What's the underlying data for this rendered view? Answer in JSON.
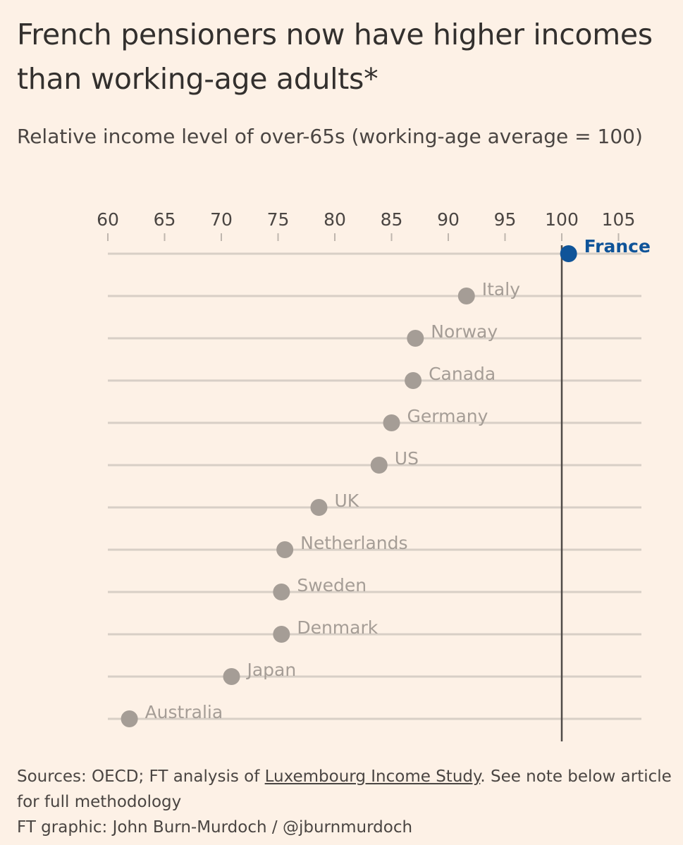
{
  "chart_data": {
    "type": "scatter",
    "title": "French pensioners now have higher incomes than working-age adults*",
    "subtitle": "Relative income level of over-65s (working-age average = 100)",
    "xlabel": "Relative income level of over-65s (working-age average = 100)",
    "ylabel": "",
    "xlim": [
      60,
      106
    ],
    "x_ticks": [
      "60",
      "65",
      "70",
      "75",
      "80",
      "85",
      "90",
      "95",
      "100",
      "105"
    ],
    "reference_line": 100,
    "highlight": "France",
    "points": [
      {
        "country": "France",
        "value": 100.6
      },
      {
        "country": "Italy",
        "value": 91.6
      },
      {
        "country": "Norway",
        "value": 87.1
      },
      {
        "country": "Canada",
        "value": 86.9
      },
      {
        "country": "Germany",
        "value": 85.0
      },
      {
        "country": "US",
        "value": 83.9
      },
      {
        "country": "UK",
        "value": 78.6
      },
      {
        "country": "Netherlands",
        "value": 75.6
      },
      {
        "country": "Sweden",
        "value": 75.3
      },
      {
        "country": "Denmark",
        "value": 75.3
      },
      {
        "country": "Japan",
        "value": 70.9
      },
      {
        "country": "Australia",
        "value": 61.9
      }
    ]
  },
  "colors": {
    "background": "#fdf1e6",
    "highlight": "#0f5499",
    "dot": "#a59d96",
    "gridline": "#d8cfc6",
    "reference_line": "#4f4a47",
    "label": "#a59d96",
    "text": "#33302e"
  },
  "footer": {
    "sources_prefix": "Sources: OECD; FT analysis of ",
    "sources_link": "Luxembourg Income Study",
    "sources_suffix": ". See note below article for full methodology",
    "credit": "FT graphic: John Burn-Murdoch / @jburnmurdoch"
  }
}
